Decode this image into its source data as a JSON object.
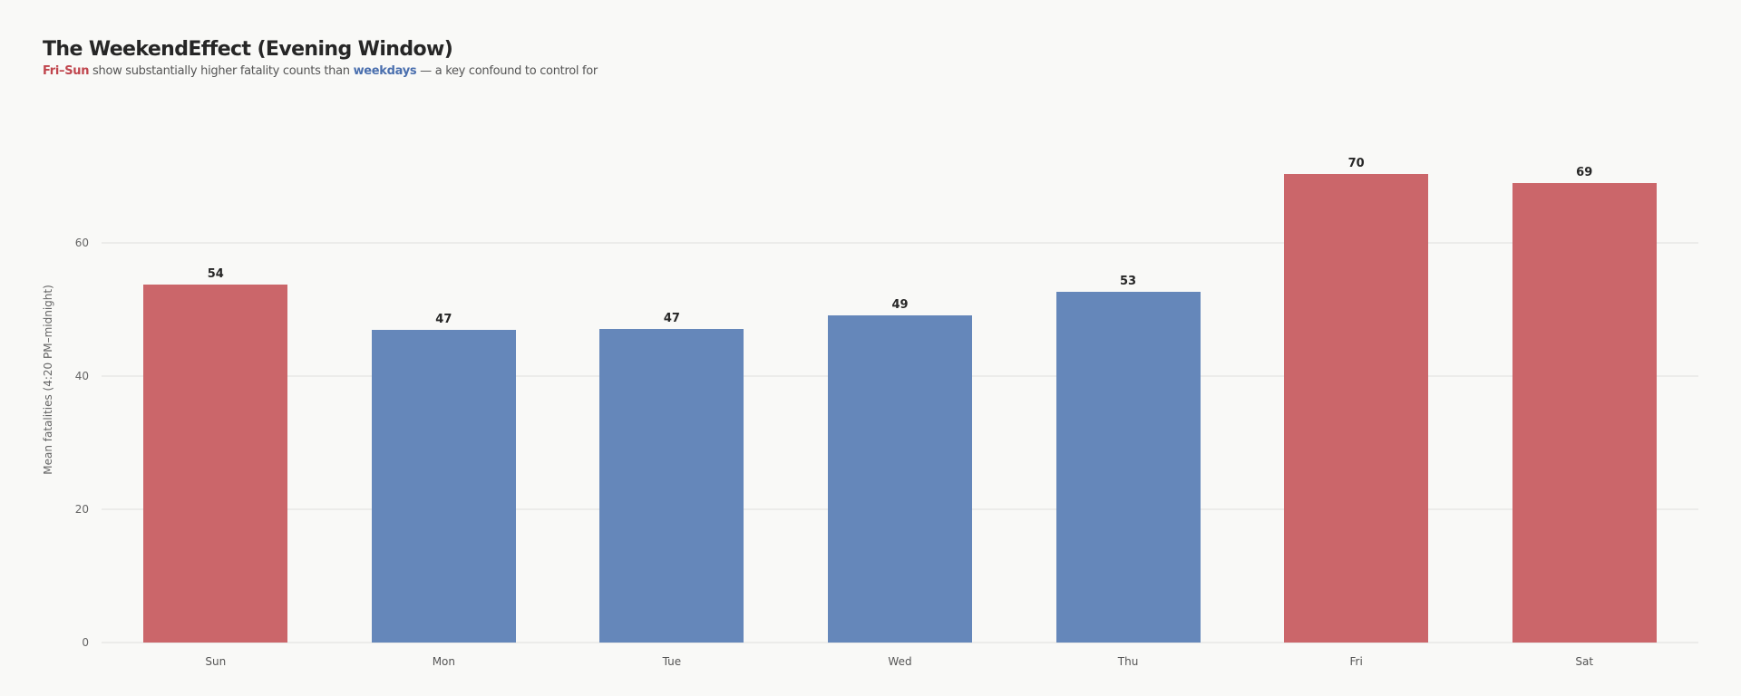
{
  "header": {
    "title": "The WeekendEffect (Evening Window)",
    "subtitle_parts": {
      "red": "Fri–Sun",
      "middle": " show substantially higher fatality counts than ",
      "blue": "weekdays",
      "end": " — a key confound to control for"
    }
  },
  "colors": {
    "weekend": "#cb666a",
    "weekday": "#6587ba",
    "background": "#f9f9f7",
    "grid": "#ececea"
  },
  "chart_data": {
    "type": "bar",
    "title": "The WeekendEffect (Evening Window)",
    "subtitle": "Fri–Sun show substantially higher fatality counts than weekdays — a key confound to control for",
    "xlabel": "",
    "ylabel": "Mean fatalities (4:20 PM–midnight)",
    "categories": [
      "Sun",
      "Mon",
      "Tue",
      "Wed",
      "Thu",
      "Fri",
      "Sat"
    ],
    "values": [
      53.7,
      47.0,
      47.1,
      49.1,
      52.7,
      70.3,
      69.0
    ],
    "data_labels": [
      "54",
      "47",
      "47",
      "49",
      "53",
      "70",
      "69"
    ],
    "groups": [
      "weekend",
      "weekday",
      "weekday",
      "weekday",
      "weekday",
      "weekend",
      "weekend"
    ],
    "yticks": [
      0,
      20,
      40,
      60
    ],
    "ylim": [
      0,
      76
    ],
    "grid": true,
    "legend": "none (colors explained in subtitle)"
  }
}
